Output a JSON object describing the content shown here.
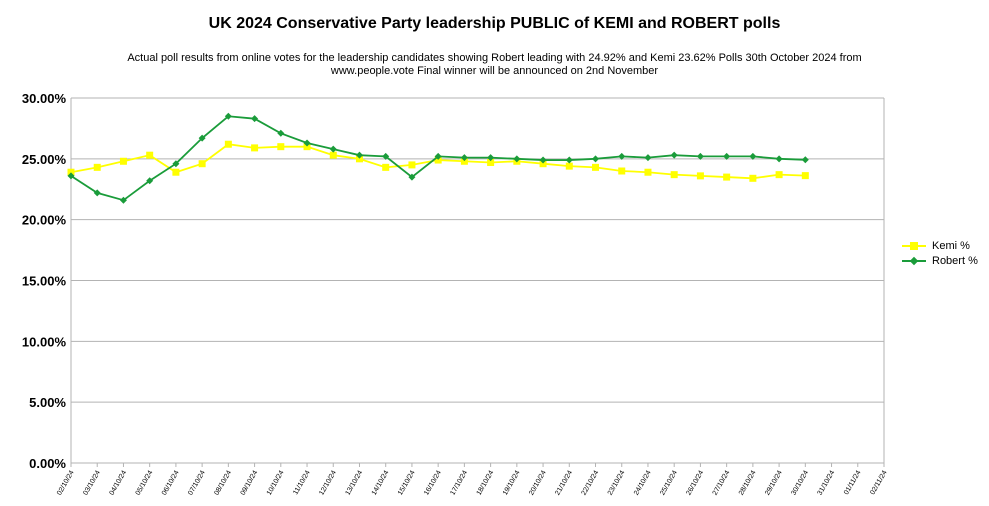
{
  "chart_data": {
    "type": "line",
    "title": "UK 2024 Conservative Party leadership PUBLIC of KEMI and ROBERT polls",
    "subtitle": "Actual poll results from online votes for the leadership candidates showing Robert leading with 24.92% and Kemi 23.62% Polls 30th October 2024 from www.people.vote Final winner will be announced on 2nd November",
    "xlabel": "",
    "ylabel": "",
    "ylim": [
      0,
      30
    ],
    "yticks": [
      "0.00%",
      "5.00%",
      "10.00%",
      "15.00%",
      "20.00%",
      "25.00%",
      "30.00%"
    ],
    "grid": true,
    "legend_position": "right",
    "categories": [
      "02/10/24",
      "03/10/24",
      "04/10/24",
      "05/10/24",
      "06/10/24",
      "07/10/24",
      "08/10/24",
      "09/10/24",
      "10/10/24",
      "11/10/24",
      "12/10/24",
      "13/10/24",
      "14/10/24",
      "15/10/24",
      "16/10/24",
      "17/10/24",
      "18/10/24",
      "19/10/24",
      "20/10/24",
      "21/10/24",
      "22/10/24",
      "23/10/24",
      "24/10/24",
      "25/10/24",
      "26/10/24",
      "27/10/24",
      "28/10/24",
      "29/10/24",
      "30/10/24",
      "31/10/24",
      "01/11/24",
      "02/11/24"
    ],
    "series": [
      {
        "name": "Kemi %",
        "color": "#ffff00",
        "marker": "square",
        "values": [
          23.9,
          24.3,
          24.8,
          25.3,
          23.9,
          24.6,
          26.2,
          25.9,
          26.0,
          26.0,
          25.3,
          25.0,
          24.3,
          24.5,
          24.9,
          24.8,
          24.7,
          24.8,
          24.6,
          24.4,
          24.3,
          24.0,
          23.9,
          23.7,
          23.6,
          23.5,
          23.4,
          23.7,
          23.62,
          null,
          null,
          null
        ]
      },
      {
        "name": "Robert %",
        "color": "#1a9c3a",
        "marker": "diamond",
        "values": [
          23.6,
          22.2,
          21.6,
          23.2,
          24.6,
          26.7,
          28.5,
          28.3,
          27.1,
          26.3,
          25.8,
          25.3,
          25.2,
          23.5,
          25.2,
          25.1,
          25.1,
          25.0,
          24.9,
          24.9,
          25.0,
          25.2,
          25.1,
          25.3,
          25.2,
          25.2,
          25.2,
          25.0,
          24.92,
          null,
          null,
          null
        ]
      }
    ]
  }
}
